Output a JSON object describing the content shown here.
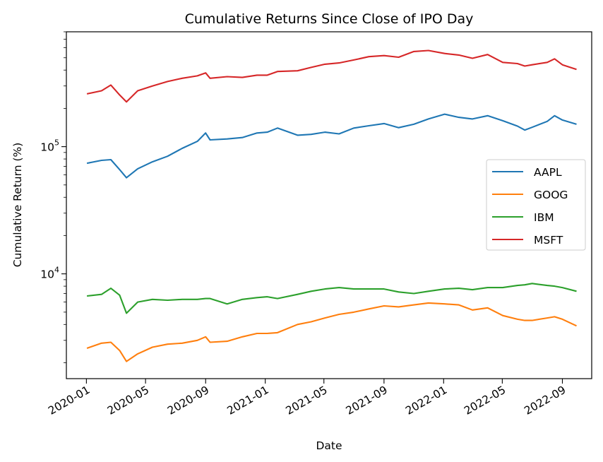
{
  "chart_data": {
    "type": "line",
    "title": "Cumulative Returns Since Close of IPO Day",
    "xlabel": "Date",
    "ylabel": "Cumulative Return (%)",
    "y_scale": "log",
    "ylim": [
      1500,
      800000
    ],
    "xlim": [
      "2019-11-21",
      "2022-10-31"
    ],
    "x_ticks": [
      "2020-01",
      "2020-05",
      "2020-09",
      "2021-01",
      "2021-05",
      "2021-09",
      "2022-01",
      "2022-05",
      "2022-09"
    ],
    "y_ticks": [
      {
        "value": 10000,
        "base": "10",
        "exp": "4"
      },
      {
        "value": 100000,
        "base": "10",
        "exp": "5"
      }
    ],
    "grid": false,
    "legend_position": "center-right",
    "x": [
      "2020-01-02",
      "2020-02-01",
      "2020-02-20",
      "2020-03-09",
      "2020-03-23",
      "2020-04-15",
      "2020-05-15",
      "2020-06-15",
      "2020-07-15",
      "2020-08-15",
      "2020-09-01",
      "2020-09-10",
      "2020-10-15",
      "2020-11-15",
      "2020-12-15",
      "2021-01-05",
      "2021-01-26",
      "2021-03-08",
      "2021-04-05",
      "2021-05-03",
      "2021-06-01",
      "2021-07-01",
      "2021-08-01",
      "2021-09-01",
      "2021-10-01",
      "2021-11-01",
      "2021-12-01",
      "2022-01-03",
      "2022-02-01",
      "2022-03-01",
      "2022-04-01",
      "2022-05-02",
      "2022-06-01",
      "2022-06-16",
      "2022-07-01",
      "2022-08-01",
      "2022-08-16",
      "2022-09-01",
      "2022-09-30"
    ],
    "series": [
      {
        "name": "AAPL",
        "color": "#1f77b4",
        "values": [
          74000,
          78000,
          79000,
          66000,
          57000,
          67000,
          76000,
          84000,
          97000,
          110000,
          128000,
          113000,
          115000,
          118000,
          128000,
          130000,
          140000,
          123000,
          125000,
          130000,
          126000,
          140000,
          146000,
          152000,
          141000,
          150000,
          165000,
          180000,
          170000,
          165000,
          175000,
          160000,
          145000,
          135000,
          142000,
          158000,
          175000,
          162000,
          150000
        ]
      },
      {
        "name": "GOOG",
        "color": "#ff7f0e",
        "values": [
          2600,
          2850,
          2900,
          2500,
          2050,
          2350,
          2650,
          2800,
          2850,
          3000,
          3200,
          2900,
          2950,
          3200,
          3400,
          3400,
          3450,
          4000,
          4200,
          4500,
          4800,
          5000,
          5300,
          5600,
          5500,
          5700,
          5900,
          5800,
          5700,
          5200,
          5400,
          4700,
          4400,
          4300,
          4300,
          4500,
          4600,
          4400,
          3900
        ]
      },
      {
        "name": "IBM",
        "color": "#2ca02c",
        "values": [
          6700,
          6900,
          7700,
          6800,
          4900,
          6000,
          6300,
          6200,
          6300,
          6300,
          6400,
          6400,
          5800,
          6300,
          6500,
          6600,
          6400,
          6900,
          7300,
          7600,
          7800,
          7600,
          7600,
          7600,
          7200,
          7000,
          7300,
          7600,
          7700,
          7500,
          7800,
          7800,
          8100,
          8200,
          8400,
          8100,
          8000,
          7800,
          7300
        ]
      },
      {
        "name": "MSFT",
        "color": "#d62728",
        "values": [
          260000,
          275000,
          305000,
          255000,
          225000,
          275000,
          300000,
          325000,
          345000,
          360000,
          380000,
          345000,
          355000,
          350000,
          365000,
          365000,
          390000,
          395000,
          420000,
          445000,
          455000,
          480000,
          510000,
          520000,
          505000,
          560000,
          570000,
          540000,
          525000,
          495000,
          530000,
          460000,
          450000,
          430000,
          440000,
          460000,
          490000,
          440000,
          405000
        ]
      }
    ]
  }
}
